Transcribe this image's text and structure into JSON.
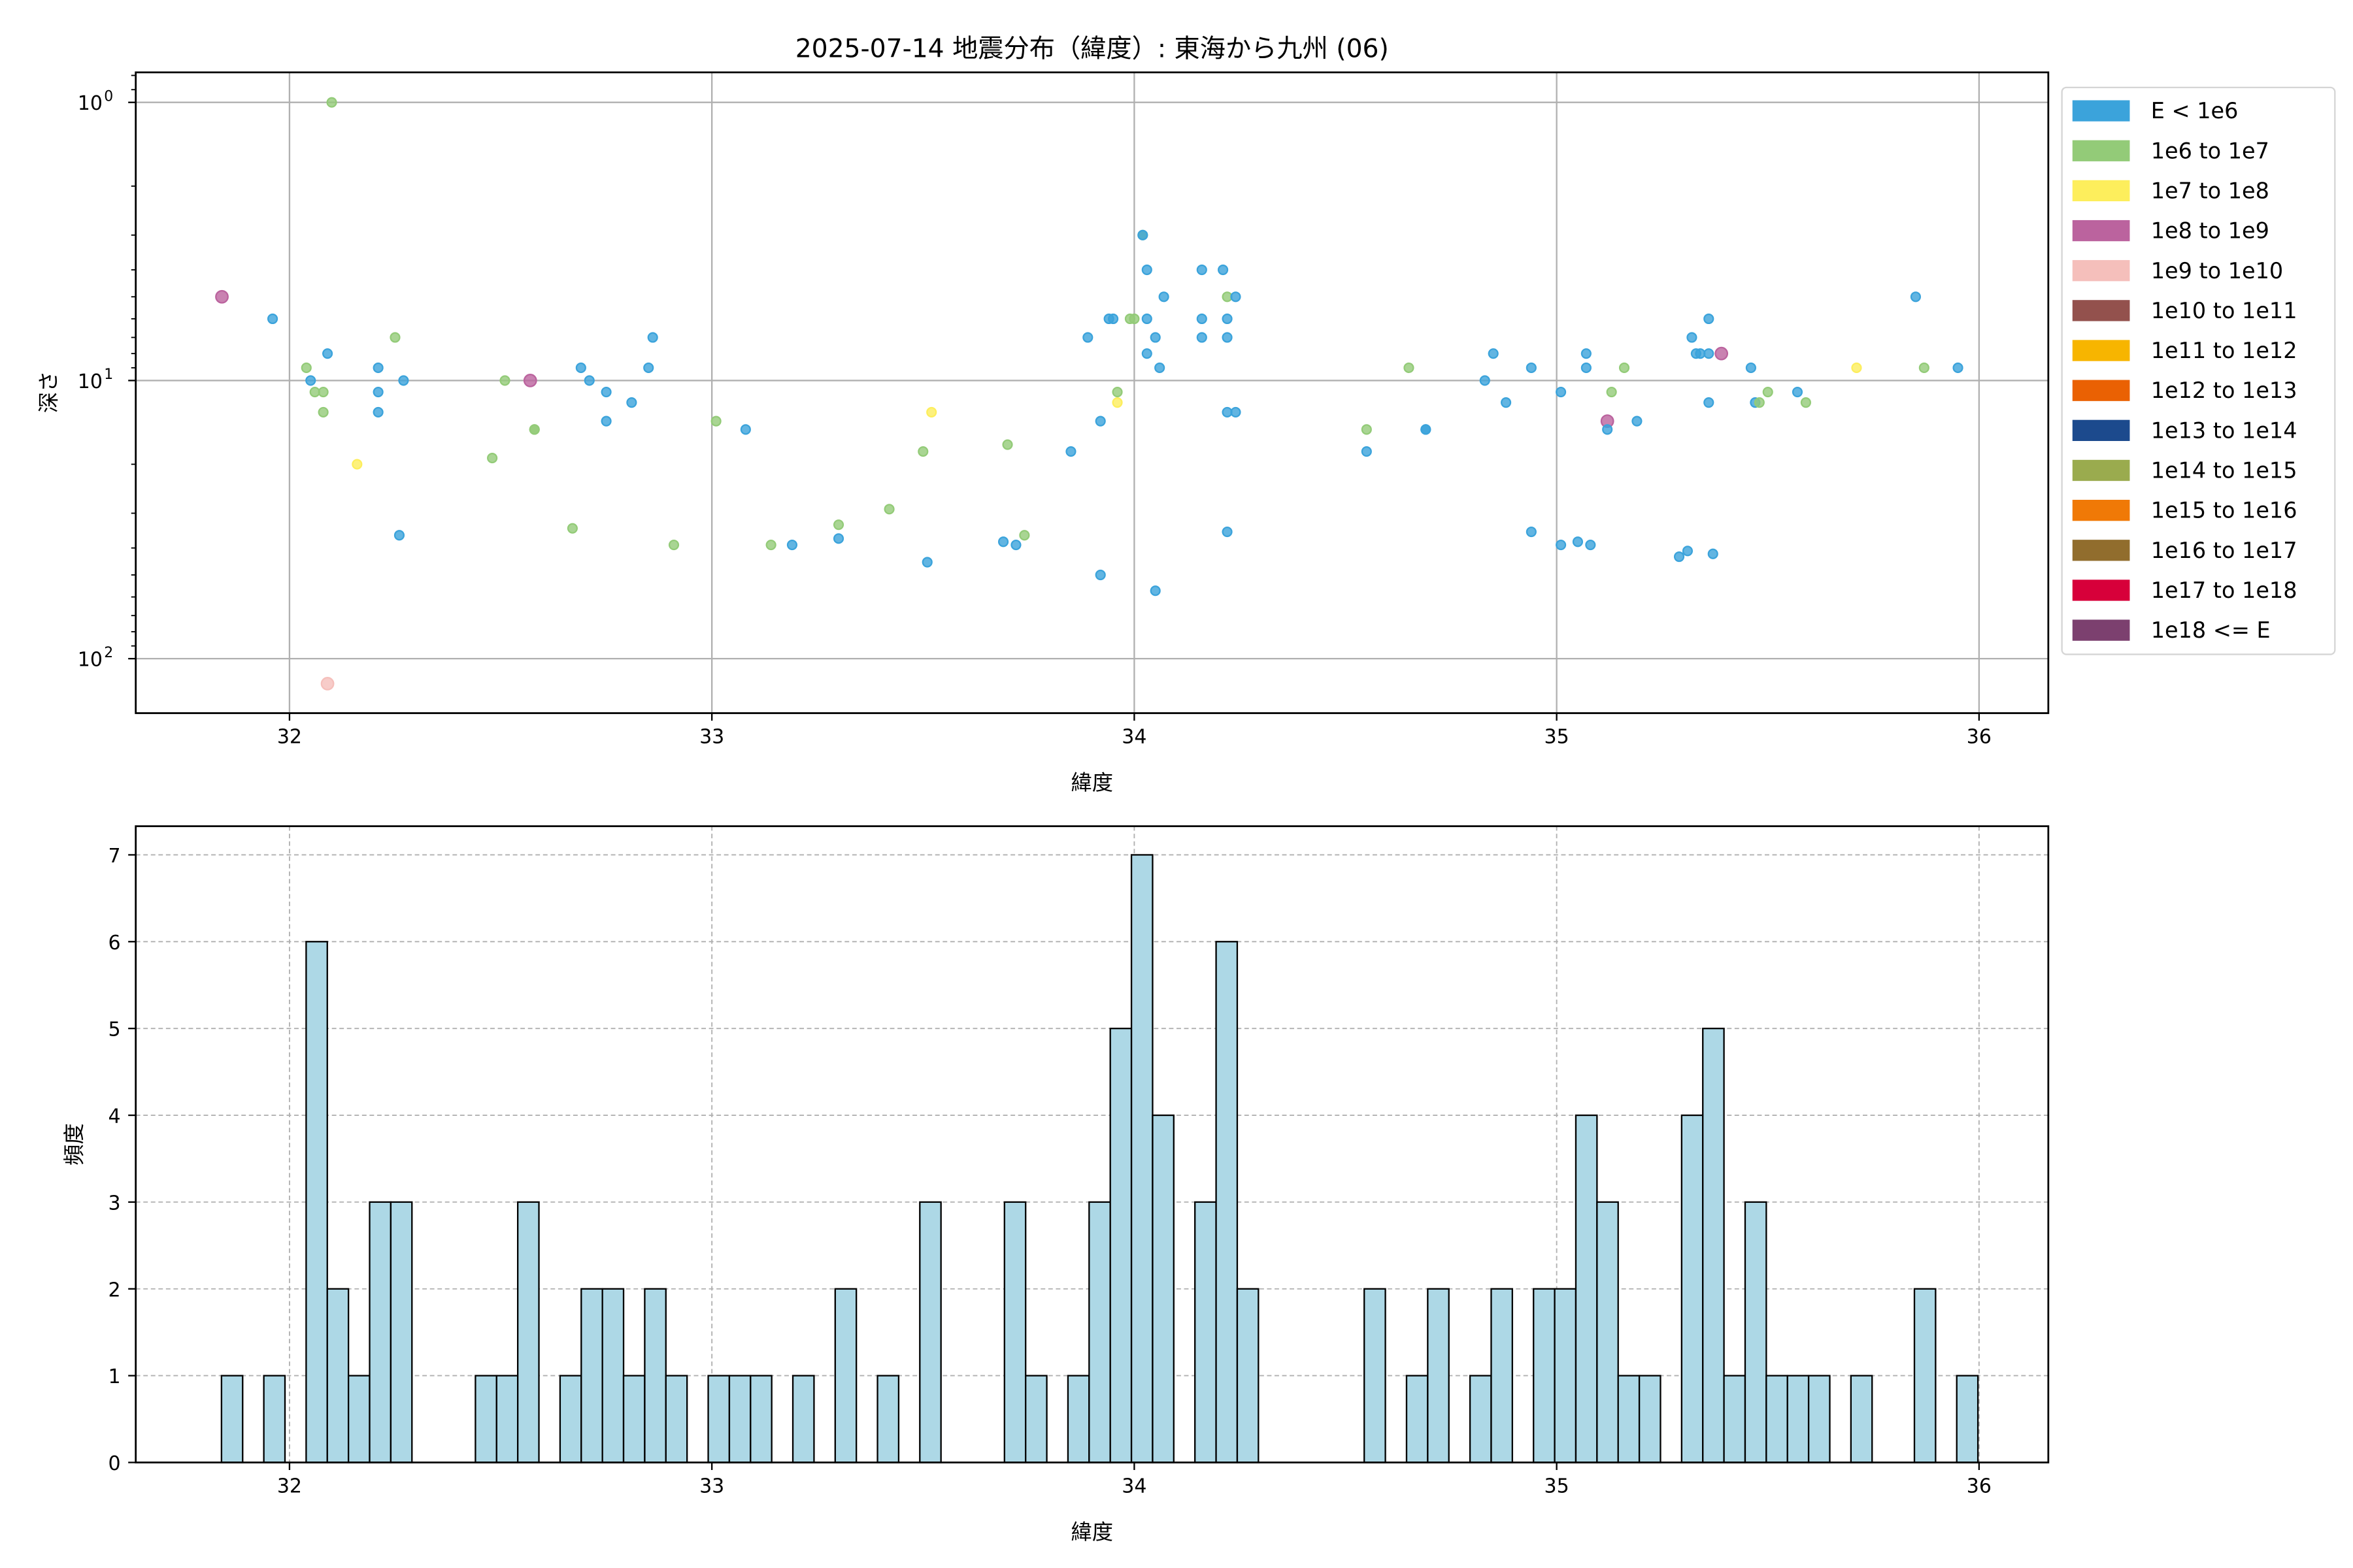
{
  "chart_data": [
    {
      "type": "scatter",
      "title": "2025-07-14 地震分布（緯度）: 東海から九州 (06)",
      "xlabel": "緯度",
      "ylabel": "深さ",
      "xlim": [
        31.636,
        36.164
      ],
      "ylim": [
        157,
        0.78
      ],
      "yscale": "log",
      "y_inverted": true,
      "grid": true,
      "xticks": [
        32,
        33,
        34,
        35,
        36
      ],
      "xtick_labels": [
        "32",
        "33",
        "34",
        "35",
        "36"
      ],
      "yticks": [
        1,
        10,
        100
      ],
      "ytick_labels": [
        {
          "base": "10",
          "exp": "0"
        },
        {
          "base": "10",
          "exp": "1"
        },
        {
          "base": "10",
          "exp": "2"
        }
      ],
      "legend_position": "outside-right",
      "legend": [
        {
          "label": "E < 1e6",
          "color": "#3ba3db"
        },
        {
          "label": "1e6 to 1e7",
          "color": "#93cb78"
        },
        {
          "label": "1e7 to 1e8",
          "color": "#fdee5c"
        },
        {
          "label": "1e8 to 1e9",
          "color": "#bb639e"
        },
        {
          "label": "1e9 to 1e10",
          "color": "#f5bfbb"
        },
        {
          "label": "1e10 to 1e11",
          "color": "#93514d"
        },
        {
          "label": "1e11 to 1e12",
          "color": "#f7b500"
        },
        {
          "label": "1e12 to 1e13",
          "color": "#ea6103"
        },
        {
          "label": "1e13 to 1e14",
          "color": "#1c4a8d"
        },
        {
          "label": "1e14 to 1e15",
          "color": "#9aab4e"
        },
        {
          "label": "1e15 to 1e16",
          "color": "#f07906"
        },
        {
          "label": "1e16 to 1e17",
          "color": "#916d2d"
        },
        {
          "label": "1e17 to 1e18",
          "color": "#d7003a"
        },
        {
          "label": "1e18 <= E",
          "color": "#7c406f"
        }
      ],
      "points": [
        [
          31.84,
          5,
          3
        ],
        [
          31.96,
          6,
          0
        ],
        [
          32.04,
          9,
          1
        ],
        [
          32.05,
          10,
          0
        ],
        [
          32.06,
          11,
          1
        ],
        [
          32.08,
          11,
          1
        ],
        [
          32.08,
          13,
          1
        ],
        [
          32.09,
          8,
          0
        ],
        [
          32.1,
          1,
          1
        ],
        [
          32.09,
          123,
          4
        ],
        [
          32.16,
          20,
          2
        ],
        [
          32.21,
          9,
          0
        ],
        [
          32.21,
          11,
          0
        ],
        [
          32.21,
          13,
          0
        ],
        [
          32.25,
          7,
          1
        ],
        [
          32.26,
          36,
          0
        ],
        [
          32.27,
          10,
          0
        ],
        [
          32.48,
          19,
          1
        ],
        [
          32.51,
          10,
          1
        ],
        [
          32.57,
          10,
          3
        ],
        [
          32.58,
          15,
          1
        ],
        [
          32.58,
          15,
          1
        ],
        [
          32.67,
          34,
          1
        ],
        [
          32.69,
          9,
          0
        ],
        [
          32.71,
          10,
          0
        ],
        [
          32.75,
          11,
          0
        ],
        [
          32.75,
          14,
          0
        ],
        [
          32.81,
          12,
          0
        ],
        [
          32.85,
          9,
          0
        ],
        [
          32.86,
          7,
          0
        ],
        [
          32.91,
          39,
          1
        ],
        [
          33.01,
          14,
          1
        ],
        [
          33.08,
          15,
          0
        ],
        [
          33.14,
          39,
          1
        ],
        [
          33.19,
          39,
          0
        ],
        [
          33.3,
          33,
          1
        ],
        [
          33.3,
          37,
          0
        ],
        [
          33.42,
          29,
          1
        ],
        [
          33.5,
          18,
          1
        ],
        [
          33.51,
          45,
          0
        ],
        [
          33.52,
          13,
          2
        ],
        [
          33.7,
          17,
          1
        ],
        [
          33.69,
          38,
          0
        ],
        [
          33.72,
          39,
          0
        ],
        [
          33.74,
          36,
          1
        ],
        [
          33.85,
          18,
          0
        ],
        [
          33.89,
          7,
          0
        ],
        [
          33.92,
          14,
          0
        ],
        [
          33.92,
          50,
          0
        ],
        [
          33.94,
          6,
          0
        ],
        [
          33.95,
          6,
          0
        ],
        [
          33.96,
          12,
          2
        ],
        [
          33.96,
          11,
          1
        ],
        [
          33.99,
          6,
          1
        ],
        [
          34.0,
          6,
          1
        ],
        [
          34.02,
          3,
          1
        ],
        [
          34.02,
          3,
          0
        ],
        [
          34.03,
          4,
          0
        ],
        [
          34.03,
          8,
          0
        ],
        [
          34.03,
          6,
          0
        ],
        [
          34.05,
          57,
          0
        ],
        [
          34.05,
          7,
          0
        ],
        [
          34.06,
          9,
          0
        ],
        [
          34.07,
          5,
          0
        ],
        [
          34.16,
          4,
          0
        ],
        [
          34.16,
          7,
          0
        ],
        [
          34.16,
          6,
          0
        ],
        [
          34.21,
          4,
          0
        ],
        [
          34.22,
          13,
          0
        ],
        [
          34.22,
          7,
          0
        ],
        [
          34.22,
          6,
          0
        ],
        [
          34.22,
          5,
          1
        ],
        [
          34.22,
          35,
          0
        ],
        [
          34.24,
          5,
          0
        ],
        [
          34.24,
          13,
          0
        ],
        [
          34.55,
          15,
          1
        ],
        [
          34.55,
          18,
          0
        ],
        [
          34.65,
          9,
          1
        ],
        [
          34.69,
          15,
          0
        ],
        [
          34.69,
          15,
          0
        ],
        [
          34.83,
          10,
          0
        ],
        [
          34.85,
          8,
          0
        ],
        [
          34.88,
          12,
          0
        ],
        [
          34.94,
          9,
          0
        ],
        [
          34.94,
          35,
          0
        ],
        [
          35.01,
          11,
          0
        ],
        [
          35.01,
          39,
          0
        ],
        [
          35.05,
          38,
          0
        ],
        [
          35.07,
          9,
          0
        ],
        [
          35.07,
          8,
          0
        ],
        [
          35.08,
          39,
          0
        ],
        [
          35.12,
          14,
          3
        ],
        [
          35.12,
          15,
          0
        ],
        [
          35.13,
          11,
          1
        ],
        [
          35.16,
          9,
          1
        ],
        [
          35.19,
          14,
          0
        ],
        [
          35.29,
          43,
          0
        ],
        [
          35.31,
          41,
          0
        ],
        [
          35.32,
          7,
          0
        ],
        [
          35.33,
          8,
          0
        ],
        [
          35.34,
          8,
          0
        ],
        [
          35.36,
          6,
          0
        ],
        [
          35.36,
          8,
          0
        ],
        [
          35.36,
          12,
          0
        ],
        [
          35.37,
          42,
          0
        ],
        [
          35.39,
          8,
          3
        ],
        [
          35.46,
          9,
          0
        ],
        [
          35.47,
          12,
          0
        ],
        [
          35.48,
          12,
          1
        ],
        [
          35.5,
          11,
          1
        ],
        [
          35.57,
          11,
          0
        ],
        [
          35.59,
          12,
          1
        ],
        [
          35.71,
          9,
          2
        ],
        [
          35.85,
          5,
          0
        ],
        [
          35.87,
          9,
          1
        ],
        [
          35.95,
          9,
          0
        ]
      ]
    },
    {
      "type": "bar",
      "subtype": "histogram",
      "xlabel": "緯度",
      "ylabel": "頻度",
      "xlim": [
        31.636,
        36.164
      ],
      "ylim": [
        0,
        7.33
      ],
      "grid": true,
      "bar_color": "#add8e6",
      "edge_color": "#000000",
      "bin_start": 31.839,
      "bin_width": 0.0501,
      "counts": [
        1,
        0,
        1,
        0,
        6,
        2,
        1,
        3,
        3,
        0,
        0,
        0,
        1,
        1,
        3,
        0,
        1,
        2,
        2,
        1,
        2,
        1,
        0,
        1,
        1,
        1,
        0,
        1,
        0,
        2,
        0,
        1,
        0,
        3,
        0,
        0,
        0,
        3,
        1,
        0,
        1,
        3,
        5,
        7,
        4,
        0,
        3,
        6,
        2,
        0,
        0,
        0,
        0,
        0,
        2,
        0,
        1,
        2,
        0,
        1,
        2,
        0,
        2,
        2,
        4,
        3,
        1,
        1,
        0,
        4,
        5,
        1,
        3,
        1,
        1,
        1,
        0,
        1,
        0,
        0,
        2,
        0,
        1
      ],
      "xticks": [
        32,
        33,
        34,
        35,
        36
      ],
      "xtick_labels": [
        "32",
        "33",
        "34",
        "35",
        "36"
      ],
      "yticks": [
        0,
        1,
        2,
        3,
        4,
        5,
        6,
        7
      ],
      "ytick_labels": [
        "0",
        "1",
        "2",
        "3",
        "4",
        "5",
        "6",
        "7"
      ]
    }
  ]
}
